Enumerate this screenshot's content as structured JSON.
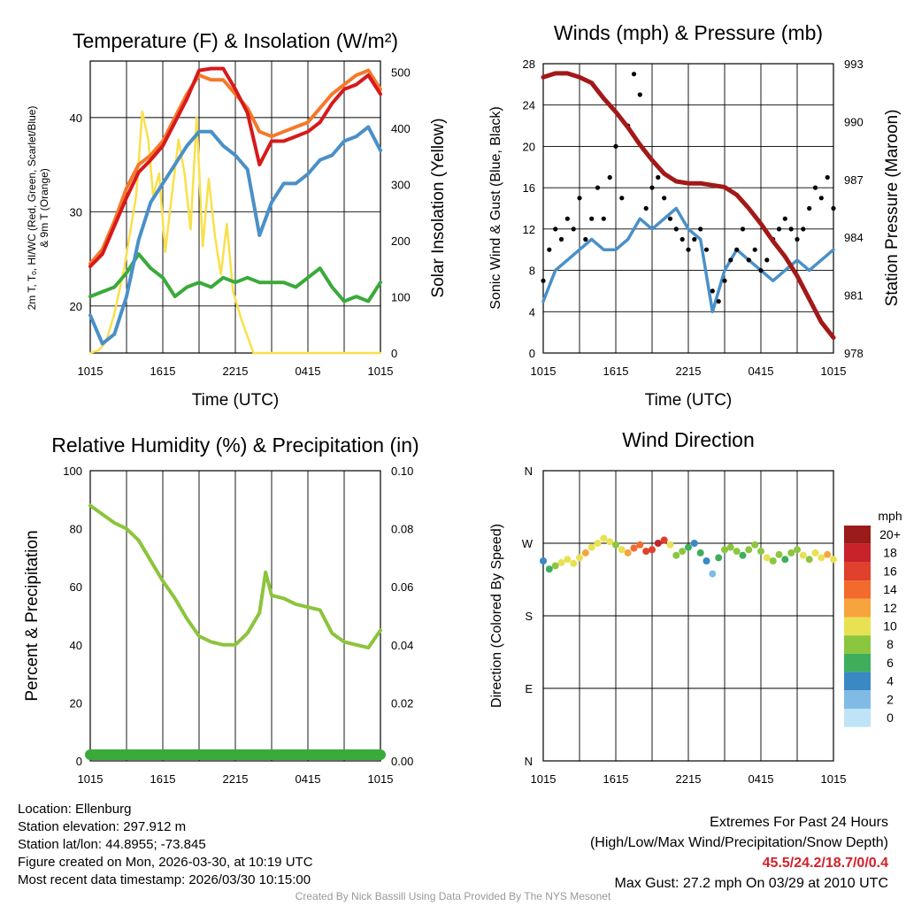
{
  "colors": {
    "red": "#d7191c",
    "orange": "#f4792a",
    "blue": "#4a90c8",
    "green": "#3aaa3a",
    "yellow": "#f9e04b",
    "maroon": "#a31818",
    "black": "#000000",
    "rh": "#8cc43c",
    "precip": "#3aaa3a"
  },
  "panels": {
    "temp": {
      "title": "Temperature (F) & Insolation (W/m²)",
      "ylabel_left_1": "2m T, Tₒ, HI/WC (Red, Green, Scarlet/Blue)",
      "ylabel_left_2": "& 9m T (Orange)",
      "ylabel_right": "Solar Insolation (Yellow)",
      "xlabel": "Time (UTC)"
    },
    "wind": {
      "title": "Winds (mph) & Pressure (mb)",
      "ylabel_left": "Sonic Wind & Gust (Blue, Black)",
      "ylabel_right": "Station Pressure (Maroon)",
      "xlabel": "Time (UTC)"
    },
    "rh": {
      "title": "Relative Humidity (%) & Precipitation (in)",
      "ylabel_left": "Percent & Precipitation"
    },
    "dir": {
      "title": "Wind Direction",
      "ylabel_left": "Direction (Colored By Speed)",
      "legend_title": "mph",
      "legend_labels": [
        "20+",
        "18",
        "16",
        "14",
        "12",
        "10",
        "8",
        "6",
        "4",
        "2",
        "0"
      ],
      "legend_colors": [
        "#9b1a1a",
        "#c8222b",
        "#e0402c",
        "#f26a2c",
        "#f8a43e",
        "#e8e253",
        "#8cc63f",
        "#3fae5c",
        "#3a88c4",
        "#7fbbe5",
        "#bfe3f7"
      ]
    }
  },
  "chart_data": [
    {
      "type": "line",
      "title": "Temperature (F) & Insolation (W/m²)",
      "xlabel": "Time (UTC)",
      "x_ticks": [
        "1015",
        "1615",
        "2215",
        "0415",
        "1015"
      ],
      "ylim": [
        15,
        46
      ],
      "y_ticks": [
        20,
        30,
        40
      ],
      "y2lim": [
        0,
        520
      ],
      "y2_ticks": [
        0,
        100,
        200,
        300,
        400,
        500
      ],
      "series": [
        {
          "name": "2m Temperature (Red)",
          "axis": "left",
          "x": [
            0,
            1,
            2,
            3,
            4,
            5,
            6,
            7,
            8,
            9,
            10,
            11,
            12,
            13,
            14,
            15,
            16,
            17,
            18,
            19,
            20,
            21,
            22,
            23,
            24
          ],
          "values": [
            24.2,
            25.5,
            28.5,
            31.5,
            34.2,
            35.5,
            37,
            39.5,
            42,
            45,
            45.2,
            45.2,
            43,
            40.5,
            35,
            37.5,
            37.5,
            38,
            38.5,
            39.5,
            41.5,
            43,
            43.5,
            44.5,
            42.5
          ]
        },
        {
          "name": "9m Temperature (Orange)",
          "axis": "left",
          "x": [
            0,
            1,
            2,
            3,
            4,
            5,
            6,
            7,
            8,
            9,
            10,
            11,
            12,
            13,
            14,
            15,
            16,
            17,
            18,
            19,
            20,
            21,
            22,
            23,
            24
          ],
          "values": [
            24.5,
            26,
            29,
            32.5,
            35,
            36,
            37.5,
            40,
            42.5,
            44.5,
            44,
            44,
            42.5,
            41,
            38.5,
            38,
            38.5,
            39,
            39.5,
            41,
            42.5,
            43.5,
            44.5,
            45,
            43
          ]
        },
        {
          "name": "Wind Chill / Heat Index (Blue)",
          "axis": "left",
          "x": [
            0,
            1,
            2,
            3,
            4,
            5,
            6,
            7,
            8,
            9,
            10,
            11,
            12,
            13,
            14,
            15,
            16,
            17,
            18,
            19,
            20,
            21,
            22,
            23,
            24
          ],
          "values": [
            19,
            16,
            17,
            21,
            27,
            31,
            33,
            35,
            37,
            38.5,
            38.5,
            37,
            36,
            34.5,
            27.5,
            31,
            33,
            33,
            34,
            35.5,
            36,
            37.5,
            38,
            39,
            36.5
          ]
        },
        {
          "name": "Dew Point (Green)",
          "axis": "left",
          "x": [
            0,
            1,
            2,
            3,
            4,
            5,
            6,
            7,
            8,
            9,
            10,
            11,
            12,
            13,
            14,
            15,
            16,
            17,
            18,
            19,
            20,
            21,
            22,
            23,
            24
          ],
          "values": [
            21,
            21.5,
            22,
            23.5,
            25.5,
            24,
            23,
            21,
            22,
            22.5,
            22,
            23,
            22.5,
            23,
            22.5,
            22.5,
            22.5,
            22,
            23,
            24,
            22,
            20.5,
            21,
            20.5,
            22.5
          ]
        },
        {
          "name": "Solar Insolation (Yellow)",
          "axis": "right",
          "x": [
            0,
            0.7,
            1.3,
            2,
            2.8,
            3.8,
            4.3,
            4.8,
            5.2,
            5.7,
            6.2,
            6.8,
            7.3,
            7.8,
            8.3,
            8.8,
            9.3,
            9.8,
            10.3,
            10.8,
            11.3,
            11.8,
            12.5,
            13.5,
            24
          ],
          "values": [
            0,
            5,
            20,
            70,
            150,
            280,
            430,
            380,
            280,
            320,
            180,
            290,
            380,
            320,
            220,
            420,
            190,
            310,
            210,
            140,
            230,
            110,
            60,
            0,
            0
          ]
        }
      ]
    },
    {
      "type": "line",
      "title": "Winds (mph) & Pressure (mb)",
      "xlabel": "Time (UTC)",
      "x_ticks": [
        "1015",
        "1615",
        "2215",
        "0415",
        "1015"
      ],
      "ylim": [
        0,
        28
      ],
      "y_ticks": [
        0,
        4,
        8,
        12,
        16,
        20,
        24,
        28
      ],
      "y2lim": [
        978,
        993
      ],
      "y2_ticks": [
        978,
        981,
        984,
        987,
        990,
        993
      ],
      "series": [
        {
          "name": "Sonic Wind (Blue)",
          "axis": "left",
          "x": [
            0,
            1,
            2,
            3,
            4,
            5,
            6,
            7,
            8,
            9,
            10,
            11,
            12,
            13,
            14,
            15,
            16,
            17,
            18,
            19,
            20,
            21,
            22,
            23,
            24
          ],
          "values": [
            5,
            8,
            9,
            10,
            11,
            10,
            10,
            11,
            13,
            12,
            13,
            14,
            12,
            11,
            4,
            8,
            10,
            9,
            8,
            7,
            8,
            9,
            8,
            9,
            10
          ]
        },
        {
          "name": "Gust (Black)",
          "axis": "left",
          "x": [
            0,
            0.5,
            1,
            1.5,
            2,
            2.5,
            3,
            3.5,
            4,
            4.5,
            5,
            5.5,
            6,
            6.5,
            7,
            7.5,
            8,
            8.5,
            9,
            9.5,
            10,
            10.5,
            11,
            11.5,
            12,
            12.5,
            13,
            13.5,
            14,
            14.5,
            15,
            15.5,
            16,
            16.5,
            17,
            17.5,
            18,
            18.5,
            19,
            19.5,
            20,
            20.5,
            21,
            21.5,
            22,
            22.5,
            23,
            23.5,
            24
          ],
          "values": [
            7,
            10,
            12,
            11,
            13,
            12,
            15,
            11,
            13,
            16,
            13,
            17,
            20,
            15,
            22,
            27,
            25,
            14,
            16,
            17,
            15,
            13,
            12,
            11,
            10,
            11,
            12,
            10,
            6,
            5,
            7,
            9,
            10,
            12,
            9,
            10,
            8,
            9,
            11,
            12,
            13,
            12,
            11,
            12,
            14,
            16,
            15,
            17,
            14
          ]
        },
        {
          "name": "Station Pressure (Maroon)",
          "axis": "right",
          "x": [
            0,
            1,
            2,
            3,
            4,
            5,
            6,
            7,
            8,
            9,
            10,
            11,
            12,
            13,
            14,
            15,
            16,
            17,
            18,
            19,
            20,
            21,
            22,
            23,
            24
          ],
          "values": [
            992.3,
            992.5,
            992.5,
            992.3,
            992,
            991.2,
            990.5,
            989.7,
            988.8,
            988,
            987.3,
            986.9,
            986.8,
            986.8,
            986.7,
            986.6,
            986.2,
            985.5,
            984.7,
            983.8,
            983,
            982,
            980.8,
            979.6,
            978.8
          ]
        }
      ]
    },
    {
      "type": "line",
      "title": "Relative Humidity (%) & Precipitation (in)",
      "x_ticks": [
        "1015",
        "1615",
        "2215",
        "0415",
        "1015"
      ],
      "ylim": [
        0,
        100
      ],
      "y_ticks": [
        0,
        20,
        40,
        60,
        80,
        100
      ],
      "y2lim": [
        0,
        0.1
      ],
      "y2_ticks": [
        "0.00",
        "0.02",
        "0.04",
        "0.06",
        "0.08",
        "0.10"
      ],
      "series": [
        {
          "name": "Relative Humidity",
          "axis": "left",
          "x": [
            0,
            1,
            2,
            3,
            4,
            5,
            6,
            7,
            8,
            9,
            10,
            11,
            12,
            13,
            14,
            14.5,
            15,
            16,
            17,
            18,
            19,
            20,
            21,
            22,
            23,
            24
          ],
          "values": [
            88,
            85,
            82,
            80,
            76,
            69,
            62,
            56,
            49,
            43,
            41,
            40,
            40,
            44,
            51,
            65,
            57,
            56,
            54,
            53,
            52,
            44,
            41,
            40,
            39,
            45
          ]
        },
        {
          "name": "Precipitation",
          "axis": "right",
          "x": [
            0,
            24
          ],
          "values": [
            0,
            0
          ]
        }
      ]
    },
    {
      "type": "scatter",
      "title": "Wind Direction",
      "ylabel": "Direction (Colored By Speed)",
      "x_ticks": [
        "1015",
        "1615",
        "2215",
        "0415",
        "1015"
      ],
      "y_ticks": [
        "N",
        "E",
        "S",
        "W",
        "N"
      ],
      "ylim_degrees": [
        0,
        360
      ],
      "points_x": [
        0,
        0.5,
        1,
        1.5,
        2,
        2.5,
        3,
        3.5,
        4,
        4.5,
        5,
        5.5,
        6,
        6.5,
        7,
        7.5,
        8,
        8.5,
        9,
        9.5,
        10,
        10.5,
        11,
        11.5,
        12,
        12.5,
        13,
        13.5,
        14,
        14.5,
        15,
        15.5,
        16,
        16.5,
        17,
        17.5,
        18,
        18.5,
        19,
        19.5,
        20,
        20.5,
        21,
        21.5,
        22,
        22.5,
        23,
        23.5,
        24
      ],
      "points_dir": [
        248,
        238,
        242,
        246,
        250,
        245,
        252,
        258,
        265,
        270,
        276,
        272,
        268,
        262,
        258,
        264,
        268,
        260,
        262,
        270,
        274,
        268,
        255,
        260,
        265,
        270,
        258,
        248,
        232,
        252,
        262,
        265,
        260,
        255,
        262,
        268,
        260,
        252,
        248,
        256,
        250,
        258,
        262,
        255,
        250,
        258,
        252,
        256,
        250
      ],
      "points_speed": [
        4,
        6,
        8,
        9,
        10,
        9,
        10,
        11,
        10,
        9,
        10,
        9,
        8,
        9,
        12,
        14,
        13,
        15,
        16,
        17,
        16,
        10,
        8,
        7,
        6,
        4,
        5,
        3,
        2,
        6,
        7,
        8,
        7,
        6,
        8,
        7,
        8,
        9,
        8,
        7,
        6,
        7,
        8,
        9,
        8,
        9,
        10,
        11,
        10
      ]
    }
  ],
  "info_left": {
    "location": "Location: Ellenburg",
    "elevation": "Station elevation: 297.912 m",
    "latlon": "Station lat/lon: 44.8955; -73.845",
    "created": "Figure created on Mon, 2026-03-30, at 10:19 UTC",
    "recent": "Most recent data timestamp: 2026/03/30 10:15:00"
  },
  "info_right": {
    "title": "Extremes For Past 24 Hours",
    "subtitle": "(High/Low/Max Wind/Precipitation/Snow Depth)",
    "values": "45.5/24.2/18.7/0/0.4",
    "max_gust": "Max Gust: 27.2 mph On 03/29 at 2010 UTC"
  },
  "credit": "Created By Nick Bassill Using Data Provided By The NYS Mesonet"
}
